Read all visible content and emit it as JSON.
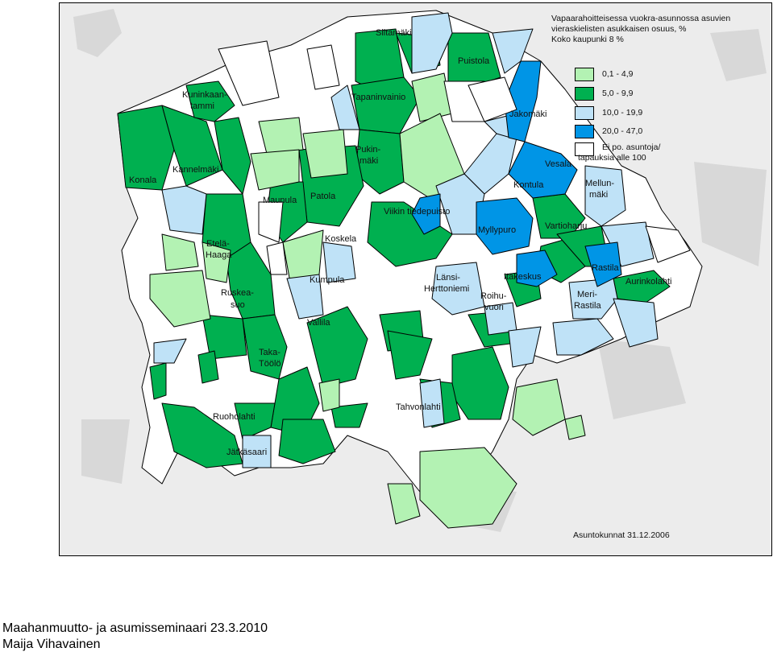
{
  "title": {
    "line1": "Vapaarahoitteisessa vuokra-asunnossa asuvien",
    "line2": "vieraskielisten asukkaisen osuus, %",
    "line3": "Koko kaupunki 8 %"
  },
  "colors": {
    "class1": "#b3f2b3",
    "class2": "#00b050",
    "class3": "#bfe2f7",
    "class4": "#0095e6",
    "no_data": "#ffffff",
    "background": "#ececec",
    "sea": "#ececec"
  },
  "legend": [
    {
      "label": "0,1 - 4,9",
      "color": "#b3f2b3"
    },
    {
      "label": "5,0 - 9,9",
      "color": "#00b050"
    },
    {
      "label": "10,0 - 19,9",
      "color": "#bfe2f7"
    },
    {
      "label": "20,0 - 47,0",
      "color": "#0095e6"
    },
    {
      "label": "Ei po. asuntoja/",
      "label2": "tapauksia alle 100",
      "color": "#ffffff"
    }
  ],
  "places": {
    "siltamaki": "Siltamäki",
    "puistola": "Puistola",
    "kuninkaantammi_1": "Kuninkaan-",
    "kuninkaantammi_2": "tammi",
    "tapaninvainio": "Tapaninvainio",
    "jakomaki": "Jakomäki",
    "konala": "Konala",
    "kannelmaki": "Kannelmäki",
    "pukinmaki_1": "Pukin-",
    "pukinmaki_2": "mäki",
    "vesala": "Vesala",
    "kontula": "Kontula",
    "mellunmaki_1": "Mellun-",
    "mellunmaki_2": "mäki",
    "maunula": "Maunula",
    "patola": "Patola",
    "viikin_tiedepuisto": "Viikin tiedepuisto",
    "myllypuro": "Myllypuro",
    "vartioharju": "Vartioharju",
    "etela_haaga_1": "Etelä-",
    "etela_haaga_2": "Haaga",
    "koskela": "Koskela",
    "rastila": "Rastila",
    "ruskeasuo_1": "Ruskea-",
    "ruskeasuo_2": "suo",
    "kumpula": "Kumpula",
    "lansi_herttoniemi_1": "Länsi-",
    "lansi_herttoniemi_2": "Herttoniemi",
    "itakeskus": "Itäkeskus",
    "aurinkolahti": "Aurinkolahti",
    "roihuvuori_1": "Roihu-",
    "roihuvuori_2": "vuori",
    "meri_rastila_1": "Meri-",
    "meri_rastila_2": "Rastila",
    "vallila": "Vallila",
    "taka_toolo_1": "Taka-",
    "taka_toolo_2": "Töölö",
    "tahvonlahti": "Tahvonlahti",
    "ruoholahti": "Ruoholahti",
    "jatkasaari": "Jätkäsaari"
  },
  "footnote": "Asuntokunnat 31.12.2006",
  "event": "Maahanmuutto- ja asumisseminaari 23.3.2010",
  "author": "Maija Vihavainen"
}
